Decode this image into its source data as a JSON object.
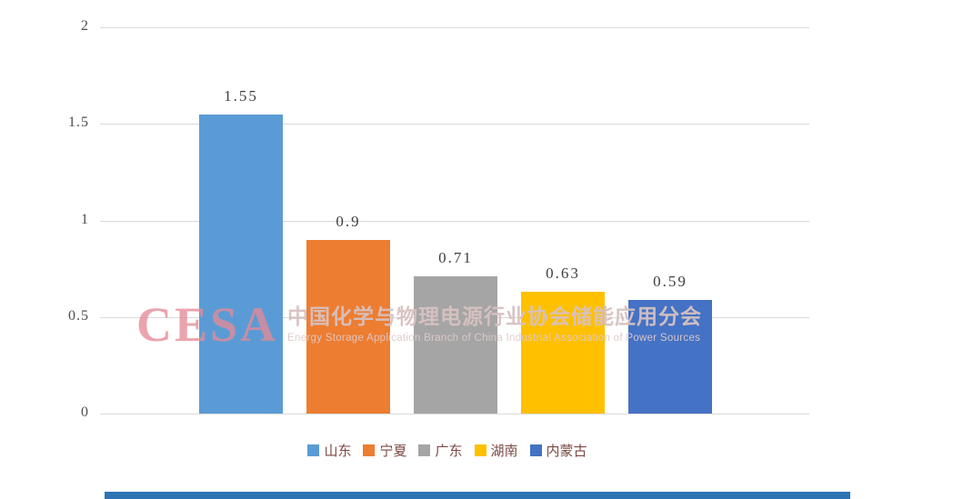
{
  "chart_data": {
    "type": "bar",
    "categories": [
      "山东",
      "宁夏",
      "广东",
      "湖南",
      "内蒙古"
    ],
    "values": [
      1.55,
      0.9,
      0.71,
      0.63,
      0.59
    ],
    "data_labels": [
      "1.55",
      "0.9",
      "0.71",
      "0.63",
      "0.59"
    ],
    "bar_colors": [
      "#5B9BD5",
      "#ED7D31",
      "#A5A5A5",
      "#FFC000",
      "#4472C4"
    ],
    "title": "",
    "xlabel": "",
    "ylabel": "",
    "ylim": [
      0,
      2
    ],
    "yticks": [
      0,
      0.5,
      1,
      1.5,
      2
    ],
    "ytick_labels": [
      "0",
      "0.5",
      "1",
      "1.5",
      "2"
    ],
    "grid": true,
    "legend_position": "bottom"
  },
  "watermark": {
    "logo_text": "CESA",
    "title": "中国化学与物理电源行业协会储能应用分会",
    "subtitle": "Energy Storage Application Branch of China Industrial Association of Power Sources"
  },
  "colors": {
    "gridline": "#d9d9d9",
    "axis_text": "#4d4d4d",
    "legend_text": "#7a4a42",
    "bottom_strip": "#2e74b5"
  }
}
